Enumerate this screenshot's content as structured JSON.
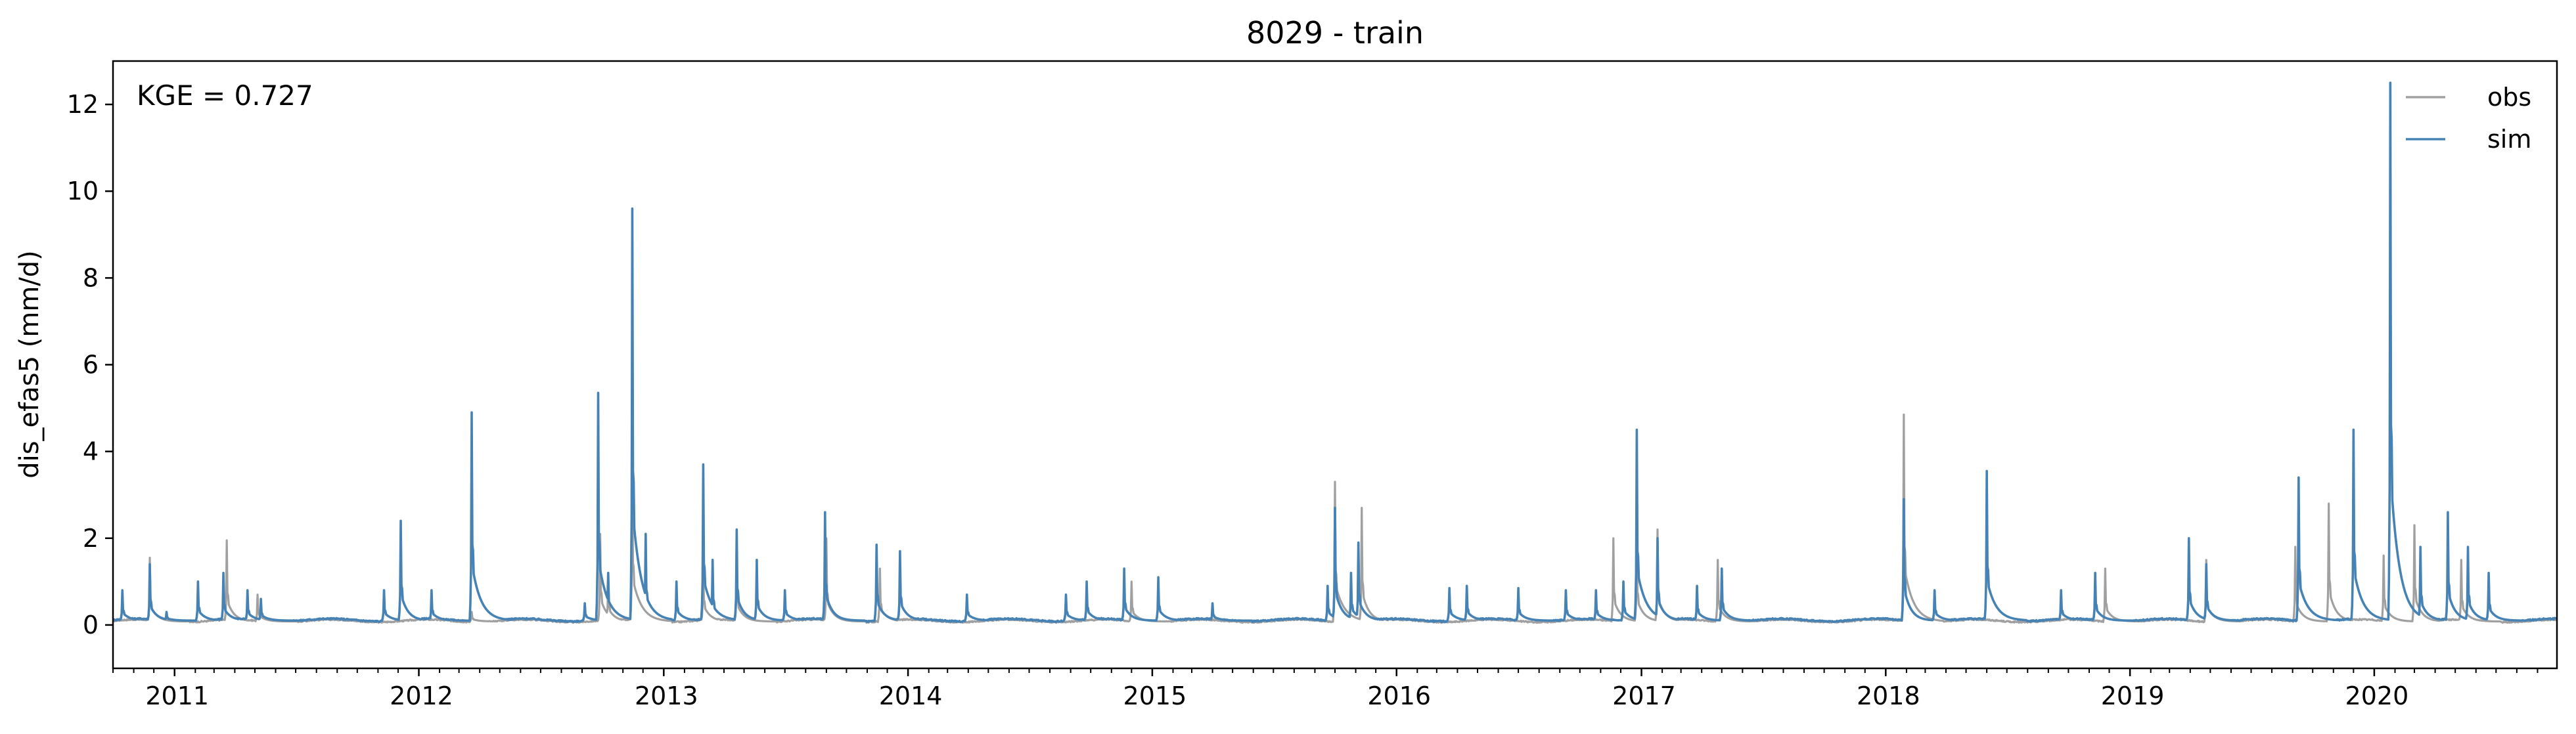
{
  "chart_data": {
    "type": "line",
    "title": "8029 - train",
    "ylabel": "dis_efas5 (mm/d)",
    "xlabel": "",
    "annotation": "KGE = 0.727",
    "x_range": [
      "2010-10-01",
      "2020-09-30"
    ],
    "ylim": [
      -1,
      13
    ],
    "yticks": [
      0,
      2,
      4,
      6,
      8,
      10,
      12
    ],
    "xticks": [
      {
        "date": "2011-01-01",
        "label": "2011"
      },
      {
        "date": "2012-01-01",
        "label": "2012"
      },
      {
        "date": "2013-01-01",
        "label": "2013"
      },
      {
        "date": "2014-01-01",
        "label": "2014"
      },
      {
        "date": "2015-01-01",
        "label": "2015"
      },
      {
        "date": "2016-01-01",
        "label": "2016"
      },
      {
        "date": "2017-01-01",
        "label": "2017"
      },
      {
        "date": "2018-01-01",
        "label": "2018"
      },
      {
        "date": "2019-01-01",
        "label": "2019"
      },
      {
        "date": "2020-01-01",
        "label": "2020"
      }
    ],
    "grid": false,
    "legend": {
      "position": "top-right",
      "frame": false
    },
    "series": [
      {
        "name": "obs",
        "color": "#a0a0a0",
        "baseline": 0.08,
        "events": [
          [
            "2010-11-25",
            1.55
          ],
          [
            "2011-03-20",
            1.95
          ],
          [
            "2011-05-05",
            0.7
          ],
          [
            "2012-03-20",
            0.3
          ],
          [
            "2012-09-28",
            2.1
          ],
          [
            "2012-10-10",
            1.2
          ],
          [
            "2012-11-15",
            3.8
          ],
          [
            "2013-03-01",
            1.5
          ],
          [
            "2013-04-20",
            1.6
          ],
          [
            "2013-09-01",
            2.0
          ],
          [
            "2013-11-20",
            1.3
          ],
          [
            "2014-12-01",
            1.0
          ],
          [
            "2015-10-01",
            3.3
          ],
          [
            "2015-11-10",
            2.7
          ],
          [
            "2016-11-20",
            2.0
          ],
          [
            "2016-12-25",
            2.0
          ],
          [
            "2017-01-25",
            2.2
          ],
          [
            "2017-04-25",
            1.5
          ],
          [
            "2018-01-28",
            4.85
          ],
          [
            "2018-11-25",
            1.3
          ],
          [
            "2019-04-25",
            1.5
          ],
          [
            "2019-09-05",
            1.8
          ],
          [
            "2019-10-25",
            2.8
          ],
          [
            "2020-01-15",
            1.6
          ],
          [
            "2020-03-01",
            2.3
          ],
          [
            "2020-05-10",
            1.5
          ]
        ]
      },
      {
        "name": "sim",
        "color": "#4682b4",
        "baseline": 0.1,
        "events": [
          [
            "2010-10-15",
            0.8
          ],
          [
            "2010-11-25",
            1.4
          ],
          [
            "2010-12-20",
            0.3
          ],
          [
            "2011-02-05",
            1.0
          ],
          [
            "2011-03-15",
            1.2
          ],
          [
            "2011-04-20",
            0.8
          ],
          [
            "2011-05-10",
            0.6
          ],
          [
            "2011-11-10",
            0.8
          ],
          [
            "2011-12-05",
            2.4
          ],
          [
            "2012-01-20",
            0.8
          ],
          [
            "2012-03-20",
            4.9
          ],
          [
            "2012-04-05",
            0.5
          ],
          [
            "2012-09-05",
            0.5
          ],
          [
            "2012-09-25",
            5.35
          ],
          [
            "2012-10-10",
            1.2
          ],
          [
            "2012-11-15",
            9.6
          ],
          [
            "2012-12-05",
            2.1
          ],
          [
            "2013-01-20",
            1.0
          ],
          [
            "2013-03-01",
            3.7
          ],
          [
            "2013-03-15",
            1.5
          ],
          [
            "2013-04-20",
            2.2
          ],
          [
            "2013-05-20",
            1.5
          ],
          [
            "2013-07-01",
            0.8
          ],
          [
            "2013-08-30",
            2.6
          ],
          [
            "2013-11-15",
            1.85
          ],
          [
            "2013-12-20",
            1.7
          ],
          [
            "2014-03-30",
            0.7
          ],
          [
            "2014-08-25",
            0.7
          ],
          [
            "2014-09-25",
            1.0
          ],
          [
            "2014-11-20",
            1.3
          ],
          [
            "2015-01-10",
            1.1
          ],
          [
            "2015-04-01",
            0.5
          ],
          [
            "2015-09-20",
            0.9
          ],
          [
            "2015-10-01",
            2.7
          ],
          [
            "2015-10-25",
            1.2
          ],
          [
            "2015-11-05",
            1.9
          ],
          [
            "2016-03-20",
            0.85
          ],
          [
            "2016-04-15",
            0.9
          ],
          [
            "2016-07-01",
            0.85
          ],
          [
            "2016-09-10",
            0.8
          ],
          [
            "2016-10-25",
            0.8
          ],
          [
            "2016-12-05",
            1.0
          ],
          [
            "2016-12-25",
            4.5
          ],
          [
            "2017-01-25",
            2.0
          ],
          [
            "2017-03-25",
            0.9
          ],
          [
            "2017-05-01",
            1.3
          ],
          [
            "2018-01-28",
            2.9
          ],
          [
            "2018-03-15",
            0.8
          ],
          [
            "2018-06-01",
            3.55
          ],
          [
            "2018-09-20",
            0.8
          ],
          [
            "2018-11-10",
            1.2
          ],
          [
            "2019-03-30",
            2.0
          ],
          [
            "2019-04-25",
            1.4
          ],
          [
            "2019-09-10",
            3.4
          ],
          [
            "2019-12-01",
            4.5
          ],
          [
            "2020-01-25",
            12.5
          ],
          [
            "2020-03-10",
            1.8
          ],
          [
            "2020-04-20",
            2.6
          ],
          [
            "2020-05-20",
            1.8
          ],
          [
            "2020-06-20",
            1.2
          ]
        ]
      }
    ]
  }
}
